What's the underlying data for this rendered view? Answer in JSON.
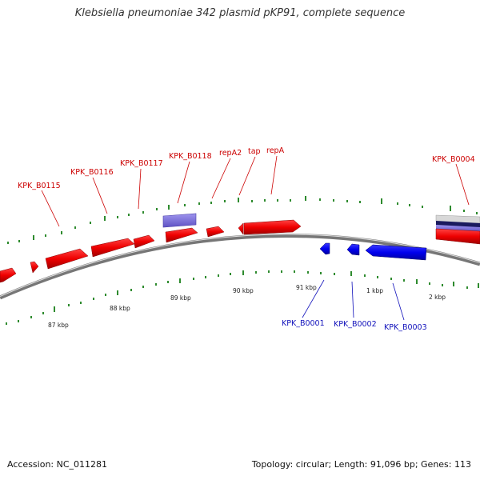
{
  "title": "Klebsiella pneumoniae 342 plasmid pKP91, complete sequence",
  "footer": {
    "accession": "Accession: NC_011281",
    "topology": "Topology: circular; Length: 91,096 bp; Genes: 113"
  },
  "ticks": [
    "87 kbp",
    "88 kbp",
    "89 kbp",
    "90 kbp",
    "91 kbp",
    "1 kbp",
    "2 kbp"
  ],
  "forward_genes": [
    "KPK_B0115",
    "KPK_B0116",
    "KPK_B0117",
    "KPK_B0118",
    "repA2",
    "tap",
    "repA",
    "KPK_B0004"
  ],
  "reverse_genes": [
    "KPK_B0001",
    "KPK_B0002",
    "KPK_B0003"
  ],
  "colors": {
    "forward_strand": "#ff0000",
    "reverse_strand": "#0000ee",
    "misc_feature": "#7b6fd6",
    "backbone": "#888888",
    "dots": "#2e8b2e",
    "forward_label": "#cc0000",
    "reverse_label": "#1010bb"
  }
}
